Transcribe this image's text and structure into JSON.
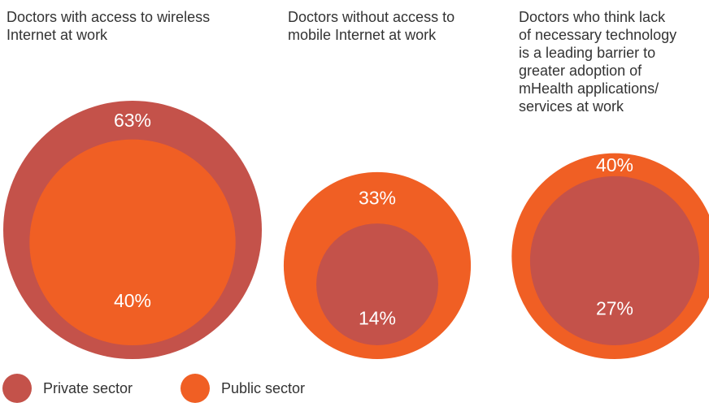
{
  "colors": {
    "private": "#C4524A",
    "public": "#F05F24",
    "text": "#333333",
    "label_text": "#ffffff"
  },
  "chart_data": [
    {
      "type": "nested-bubble",
      "title_lines": [
        "Doctors with access to wireless",
        "Internet at work"
      ],
      "series": [
        {
          "name": "Private sector",
          "value": 63,
          "label": "63%"
        },
        {
          "name": "Public sector",
          "value": 40,
          "label": "40%"
        }
      ]
    },
    {
      "type": "nested-bubble",
      "title_lines": [
        "Doctors without access to",
        "mobile Internet at work"
      ],
      "series": [
        {
          "name": "Private sector",
          "value": 14,
          "label": "14%"
        },
        {
          "name": "Public sector",
          "value": 33,
          "label": "33%"
        }
      ]
    },
    {
      "type": "nested-bubble",
      "title_lines": [
        "Doctors who think lack",
        "of necessary technology",
        "is a leading barrier to",
        "greater adoption of",
        "mHealth applications/",
        "services at work"
      ],
      "series": [
        {
          "name": "Private sector",
          "value": 27,
          "label": "27%"
        },
        {
          "name": "Public sector",
          "value": 40,
          "label": "40%"
        }
      ]
    }
  ],
  "legend": [
    {
      "label": "Private sector",
      "color_key": "private"
    },
    {
      "label": "Public sector",
      "color_key": "public"
    }
  ]
}
